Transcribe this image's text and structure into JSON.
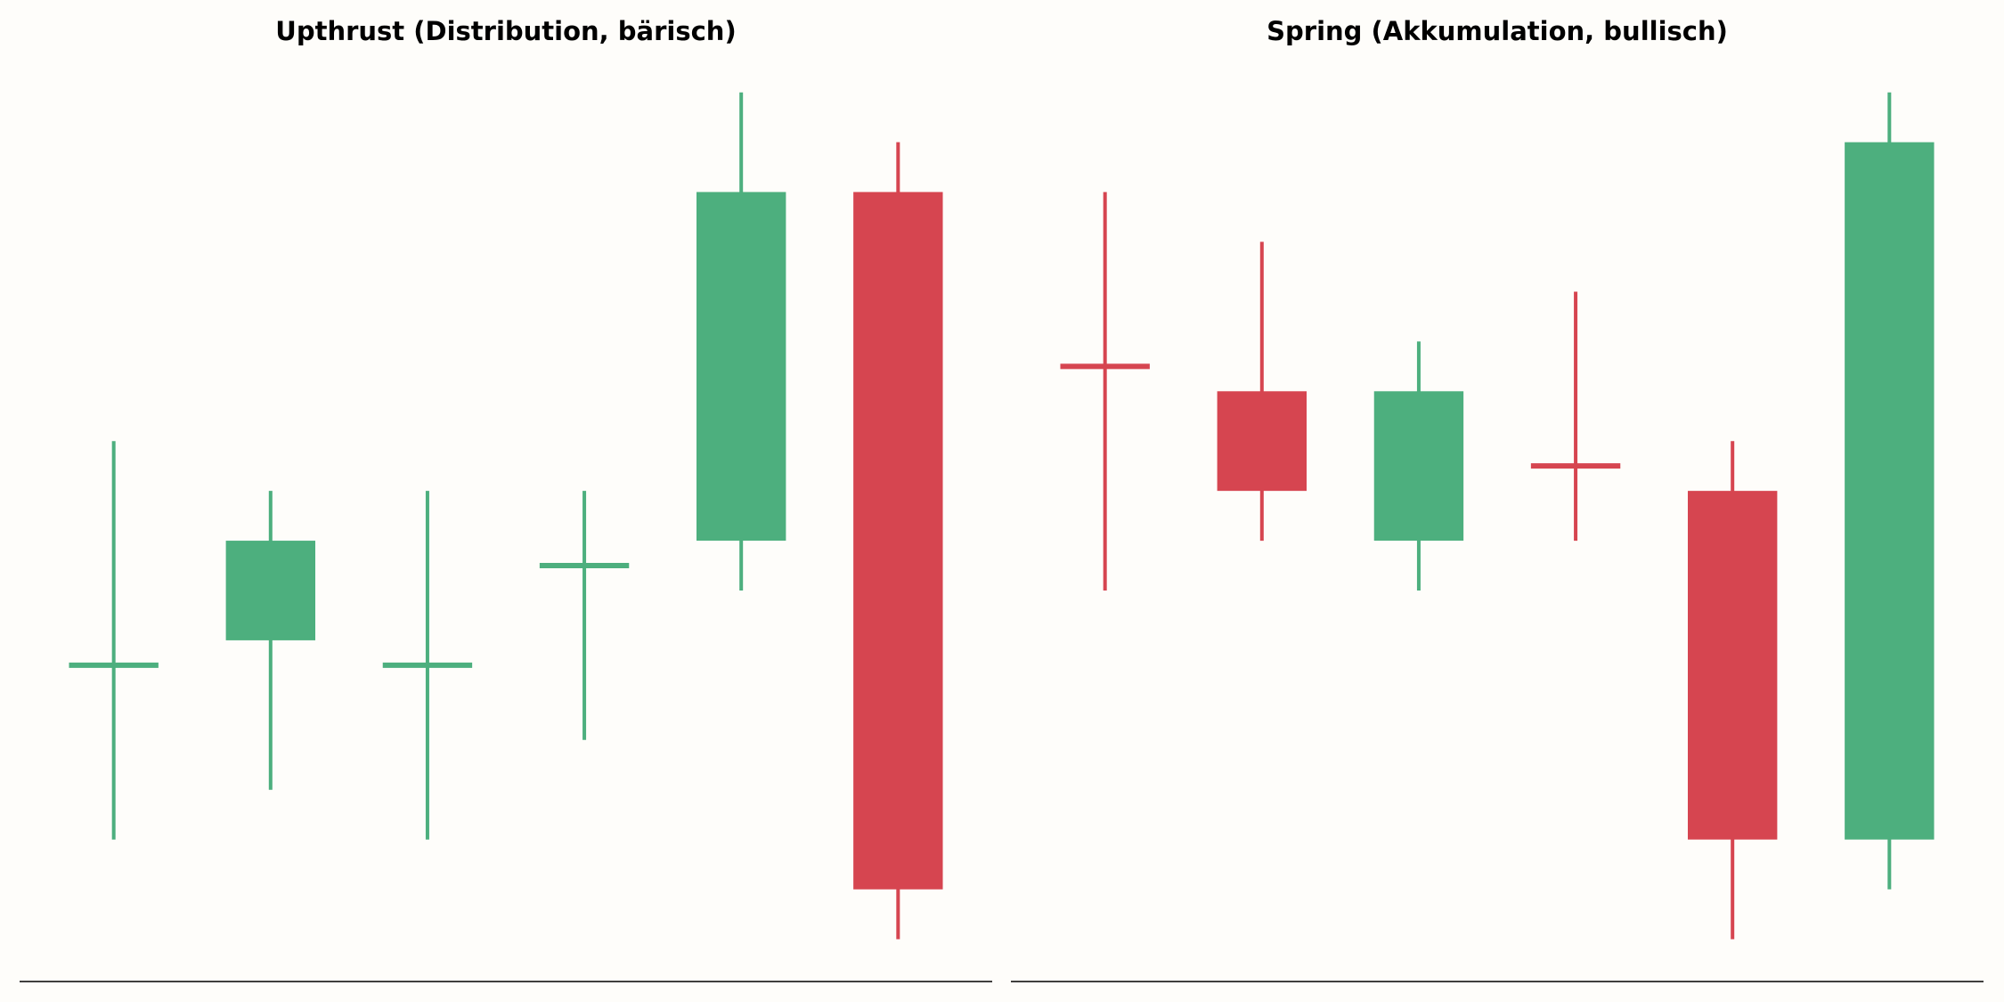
{
  "chart_data": [
    {
      "type": "candlestick",
      "title": "Upthrust (Distribution, bärisch)",
      "open": [
        5.5,
        6,
        5.5,
        7.5,
        8,
        15
      ],
      "high": [
        10,
        9,
        9,
        9,
        17,
        16
      ],
      "low": [
        2,
        3,
        2,
        4,
        7,
        0
      ],
      "close": [
        5.5,
        8,
        5.5,
        7.5,
        15,
        1
      ],
      "colors": [
        "#4daf7e",
        "#4daf7e",
        "#4daf7e",
        "#4daf7e",
        "#4daf7e",
        "#d64550"
      ],
      "ylim": [
        -0.85,
        17.8
      ]
    },
    {
      "type": "candlestick",
      "title": "Spring (Akkumulation, bullisch)",
      "open": [
        11.5,
        11,
        8,
        9.5,
        9,
        2
      ],
      "high": [
        15,
        14,
        12,
        13,
        10,
        17
      ],
      "low": [
        7,
        8,
        7,
        8,
        0,
        1
      ],
      "close": [
        11.5,
        9,
        11,
        9.5,
        2,
        16
      ],
      "colors": [
        "#d64550",
        "#d64550",
        "#4daf7e",
        "#d64550",
        "#d64550",
        "#4daf7e"
      ],
      "ylim": [
        -0.85,
        17.8
      ]
    }
  ]
}
